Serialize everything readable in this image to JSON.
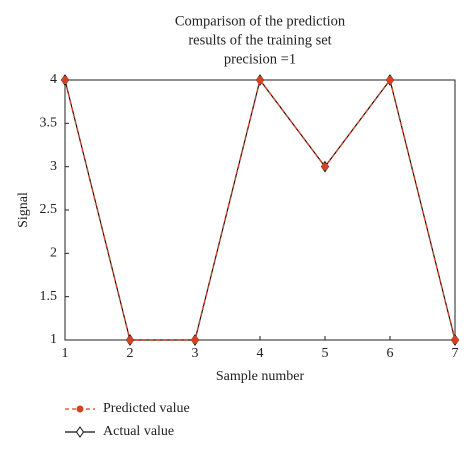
{
  "chart_data": {
    "type": "line",
    "title": [
      "Comparison of the prediction",
      "results of the training set",
      "precision =1"
    ],
    "x_label": "Sample number",
    "y_label": "Signal",
    "x": [
      1,
      2,
      3,
      4,
      5,
      6,
      7
    ],
    "series": [
      {
        "name": "Predicted value",
        "color": "#d9401f",
        "values": [
          4,
          1,
          1,
          4,
          3,
          4,
          1
        ]
      },
      {
        "name": "Actual value",
        "color": "#111111",
        "values": [
          4,
          1,
          1,
          4,
          3,
          4,
          1
        ]
      }
    ],
    "xlim": [
      1,
      7
    ],
    "xticks": [
      1,
      2,
      3,
      4,
      5,
      6,
      7
    ],
    "ylim": [
      1,
      4
    ],
    "yticks": [
      1,
      1.5,
      2,
      2.5,
      3,
      3.5,
      4
    ],
    "grid": false
  }
}
